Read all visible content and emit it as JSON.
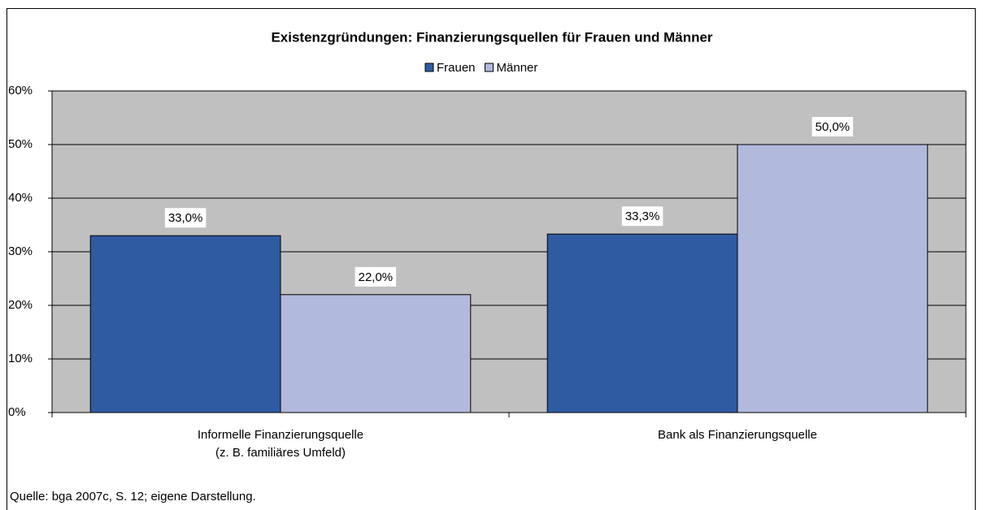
{
  "chart_data": {
    "type": "bar",
    "title": "Existenzgründungen: Finanzierungsquellen für Frauen und Männer",
    "categories": [
      "Informelle Finanzierungsquelle\n(z. B. familiäres Umfeld)",
      "Bank als Finanzierungsquelle"
    ],
    "series": [
      {
        "name": "Frauen",
        "color": "#2f5ba3",
        "values": [
          33.0,
          33.3
        ],
        "value_labels": [
          "33,0%",
          "33,3%"
        ]
      },
      {
        "name": "Männer",
        "color": "#b1b9dc",
        "values": [
          22.0,
          50.0
        ],
        "value_labels": [
          "22,0%",
          "50,0%"
        ]
      }
    ],
    "ylim": [
      0,
      60
    ],
    "yticks": [
      {
        "value": 0,
        "label": "0%"
      },
      {
        "value": 10,
        "label": "10%"
      },
      {
        "value": 20,
        "label": "20%"
      },
      {
        "value": 30,
        "label": "30%"
      },
      {
        "value": 40,
        "label": "40%"
      },
      {
        "value": 50,
        "label": "50%"
      },
      {
        "value": 60,
        "label": "60%"
      }
    ],
    "grid": true,
    "legend": "top",
    "source": "Quelle: bga 2007c, S. 12; eigene Darstellung."
  }
}
